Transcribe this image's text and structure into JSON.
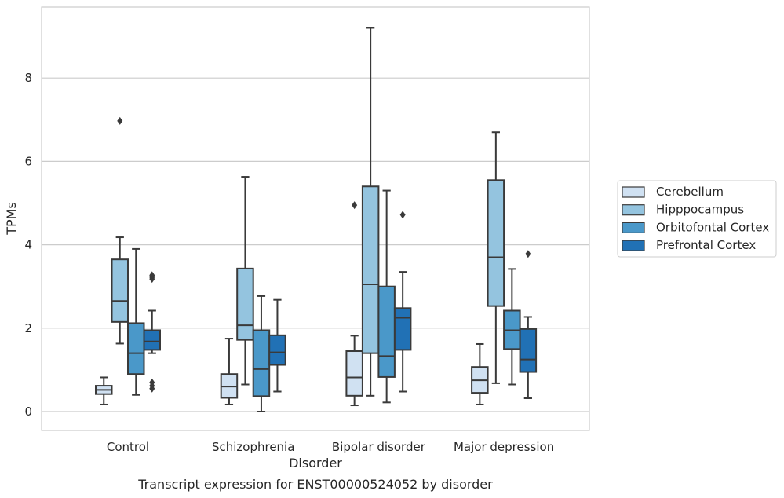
{
  "chart_data": {
    "type": "box",
    "title": "",
    "caption": "Transcript expression for ENST00000524052 by disorder",
    "xlabel": "Disorder",
    "ylabel": "TPMs",
    "ylim": [
      -0.45,
      9.6
    ],
    "yticks": [
      0,
      2,
      4,
      6,
      8
    ],
    "grid": "horizontal",
    "legend_position": "right",
    "categories": [
      "Control",
      "Schizophrenia",
      "Bipolar disorder",
      "Major depression"
    ],
    "series": [
      {
        "name": "Cerebellum",
        "color": "#d0e1f2",
        "boxes": [
          {
            "whisker_low": 0.17,
            "q1": 0.42,
            "median": 0.52,
            "q3": 0.62,
            "whisker_high": 0.82,
            "outliers": []
          },
          {
            "whisker_low": 0.17,
            "q1": 0.33,
            "median": 0.6,
            "q3": 0.9,
            "whisker_high": 1.75,
            "outliers": []
          },
          {
            "whisker_low": 0.15,
            "q1": 0.38,
            "median": 0.82,
            "q3": 1.45,
            "whisker_high": 1.82,
            "outliers": [
              4.95
            ]
          },
          {
            "whisker_low": 0.17,
            "q1": 0.45,
            "median": 0.75,
            "q3": 1.07,
            "whisker_high": 1.62,
            "outliers": []
          }
        ]
      },
      {
        "name": "Hipppocampus",
        "color": "#94c4df",
        "boxes": [
          {
            "whisker_low": 1.63,
            "q1": 2.15,
            "median": 2.65,
            "q3": 3.65,
            "whisker_high": 4.18,
            "outliers": [
              6.97
            ]
          },
          {
            "whisker_low": 0.65,
            "q1": 1.72,
            "median": 2.07,
            "q3": 3.43,
            "whisker_high": 5.63,
            "outliers": []
          },
          {
            "whisker_low": 0.38,
            "q1": 1.4,
            "median": 3.05,
            "q3": 5.4,
            "whisker_high": 9.2,
            "outliers": []
          },
          {
            "whisker_low": 0.68,
            "q1": 2.53,
            "median": 3.7,
            "q3": 5.55,
            "whisker_high": 6.7,
            "outliers": []
          }
        ]
      },
      {
        "name": "Orbitofontal Cortex",
        "color": "#4a98c9",
        "boxes": [
          {
            "whisker_low": 0.4,
            "q1": 0.9,
            "median": 1.4,
            "q3": 2.12,
            "whisker_high": 3.9,
            "outliers": []
          },
          {
            "whisker_low": 0.0,
            "q1": 0.37,
            "median": 1.02,
            "q3": 1.95,
            "whisker_high": 2.77,
            "outliers": []
          },
          {
            "whisker_low": 0.22,
            "q1": 0.83,
            "median": 1.33,
            "q3": 3.0,
            "whisker_high": 5.3,
            "outliers": []
          },
          {
            "whisker_low": 0.65,
            "q1": 1.5,
            "median": 1.95,
            "q3": 2.42,
            "whisker_high": 3.42,
            "outliers": []
          }
        ]
      },
      {
        "name": "Prefrontal Cortex",
        "color": "#2171b5",
        "boxes": [
          {
            "whisker_low": 1.4,
            "q1": 1.48,
            "median": 1.68,
            "q3": 1.95,
            "whisker_high": 2.42,
            "outliers": [
              0.55,
              0.62,
              0.7,
              3.18,
              3.22,
              3.27
            ]
          },
          {
            "whisker_low": 0.48,
            "q1": 1.12,
            "median": 1.42,
            "q3": 1.83,
            "whisker_high": 2.68,
            "outliers": []
          },
          {
            "whisker_low": 0.48,
            "q1": 1.48,
            "median": 2.25,
            "q3": 2.48,
            "whisker_high": 3.35,
            "outliers": [
              4.72
            ]
          },
          {
            "whisker_low": 0.32,
            "q1": 0.95,
            "median": 1.25,
            "q3": 1.98,
            "whisker_high": 2.27,
            "outliers": [
              3.78
            ]
          }
        ]
      }
    ]
  }
}
